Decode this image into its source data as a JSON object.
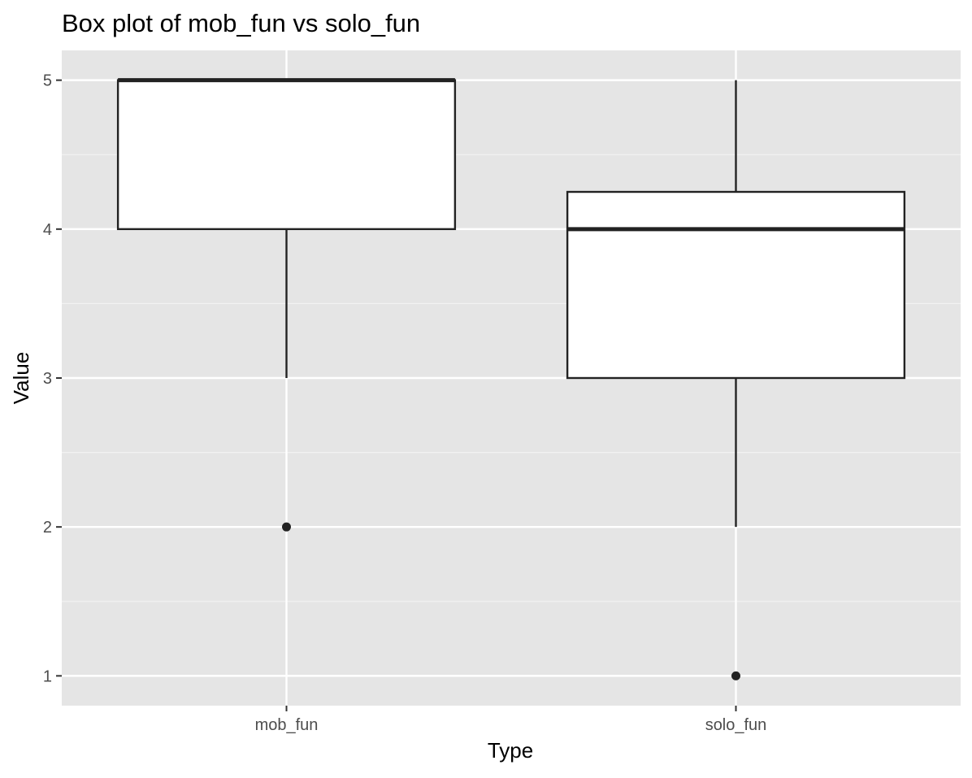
{
  "chart_data": {
    "type": "box",
    "title": "Box plot of mob_fun vs solo_fun",
    "xlabel": "Type",
    "ylabel": "Value",
    "categories": [
      "mob_fun",
      "solo_fun"
    ],
    "boxes": [
      {
        "category": "mob_fun",
        "lower_whisker": 3,
        "q1": 4,
        "median": 5,
        "q3": 5,
        "upper_whisker": 5,
        "outliers": [
          2
        ]
      },
      {
        "category": "solo_fun",
        "lower_whisker": 2,
        "q1": 3,
        "median": 4,
        "q3": 4.25,
        "upper_whisker": 5,
        "outliers": [
          1
        ]
      }
    ],
    "ylim": [
      0.8,
      5.2
    ],
    "yticks": [
      1,
      2,
      3,
      4,
      5
    ],
    "ytick_labels": [
      "1",
      "2",
      "3",
      "4",
      "5"
    ],
    "grid": true,
    "legend": "none",
    "colors": {
      "panel_background": "#e5e5e5",
      "grid_major": "#ffffff",
      "grid_minor": "#f2f2f2",
      "box_fill": "#ffffff",
      "box_stroke": "#222222",
      "tick_text": "#4d4d4d",
      "title_text": "#000000"
    }
  }
}
